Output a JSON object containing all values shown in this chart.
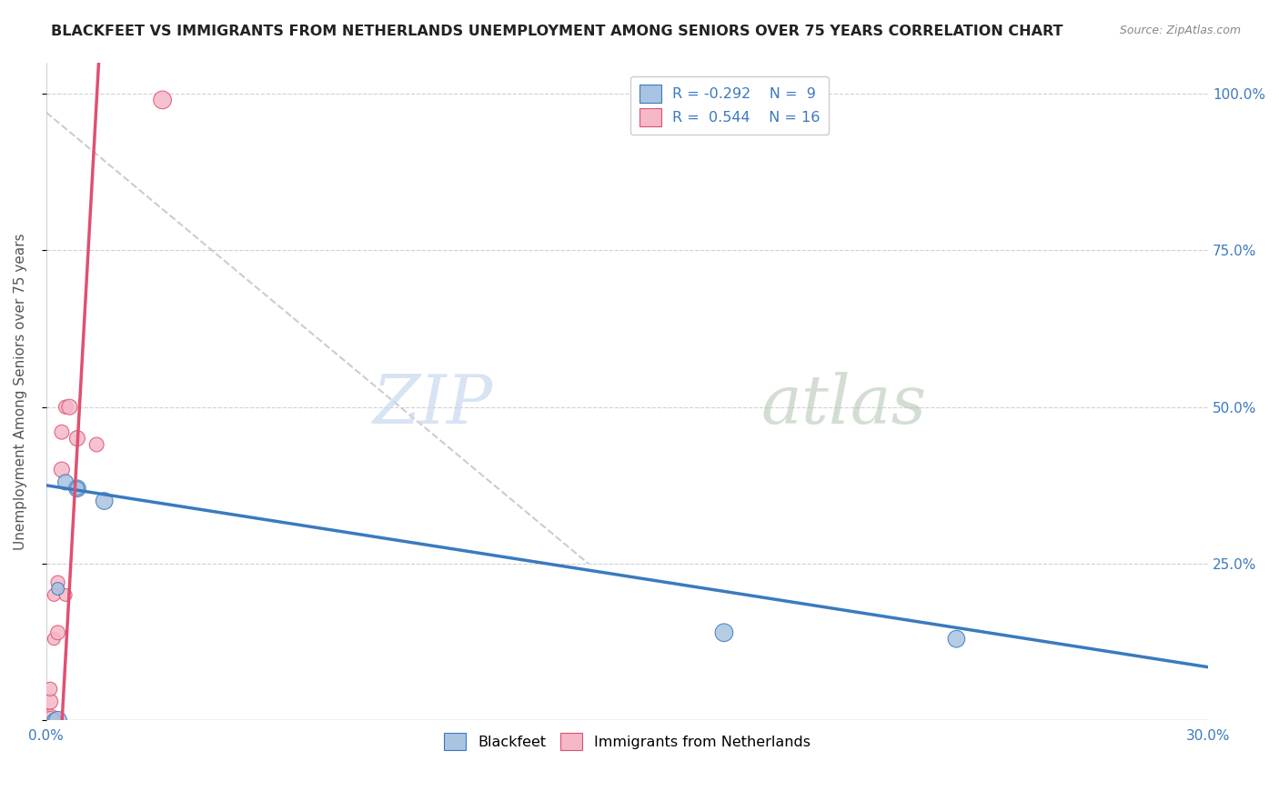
{
  "title": "BLACKFEET VS IMMIGRANTS FROM NETHERLANDS UNEMPLOYMENT AMONG SENIORS OVER 75 YEARS CORRELATION CHART",
  "source": "Source: ZipAtlas.com",
  "ylabel": "Unemployment Among Seniors over 75 years",
  "x_ticks": [
    0.0,
    0.05,
    0.1,
    0.15,
    0.2,
    0.25,
    0.3
  ],
  "x_tick_labels": [
    "0.0%",
    "",
    "",
    "",
    "",
    "",
    "30.0%"
  ],
  "y_ticks": [
    0.0,
    0.25,
    0.5,
    0.75,
    1.0
  ],
  "y_tick_labels_right": [
    "",
    "25.0%",
    "50.0%",
    "75.0%",
    "100.0%"
  ],
  "xlim": [
    0.0,
    0.3
  ],
  "ylim": [
    0.0,
    1.05
  ],
  "blackfeet_color": "#a8c4e0",
  "netherlands_color": "#f4b8c8",
  "trend_blue": "#3a7abf",
  "trend_pink": "#e05070",
  "trend_dashed_color": "#c0c0c0",
  "legend_R_blue": "R = -0.292",
  "legend_N_blue": "N =  9",
  "legend_R_pink": "R =  0.544",
  "legend_N_pink": "N = 16",
  "blackfeet_x": [
    0.002,
    0.003,
    0.003,
    0.005,
    0.008,
    0.008,
    0.015,
    0.175,
    0.235
  ],
  "blackfeet_y": [
    0.0,
    0.0,
    0.21,
    0.38,
    0.37,
    0.37,
    0.35,
    0.14,
    0.13
  ],
  "blackfeet_size": [
    120,
    200,
    100,
    150,
    180,
    120,
    180,
    200,
    180
  ],
  "netherlands_x": [
    0.001,
    0.001,
    0.001,
    0.001,
    0.002,
    0.002,
    0.003,
    0.003,
    0.004,
    0.004,
    0.005,
    0.005,
    0.006,
    0.008,
    0.013,
    0.03
  ],
  "netherlands_y": [
    0.0,
    0.0,
    0.03,
    0.05,
    0.13,
    0.2,
    0.14,
    0.22,
    0.4,
    0.46,
    0.2,
    0.5,
    0.5,
    0.45,
    0.44,
    0.99
  ],
  "netherlands_size": [
    300,
    200,
    150,
    120,
    100,
    100,
    130,
    120,
    150,
    130,
    100,
    120,
    150,
    150,
    130,
    200
  ],
  "watermark_zip": "ZIP",
  "watermark_atlas": "atlas",
  "background_color": "#ffffff",
  "grid_color": "#d0d0d0"
}
